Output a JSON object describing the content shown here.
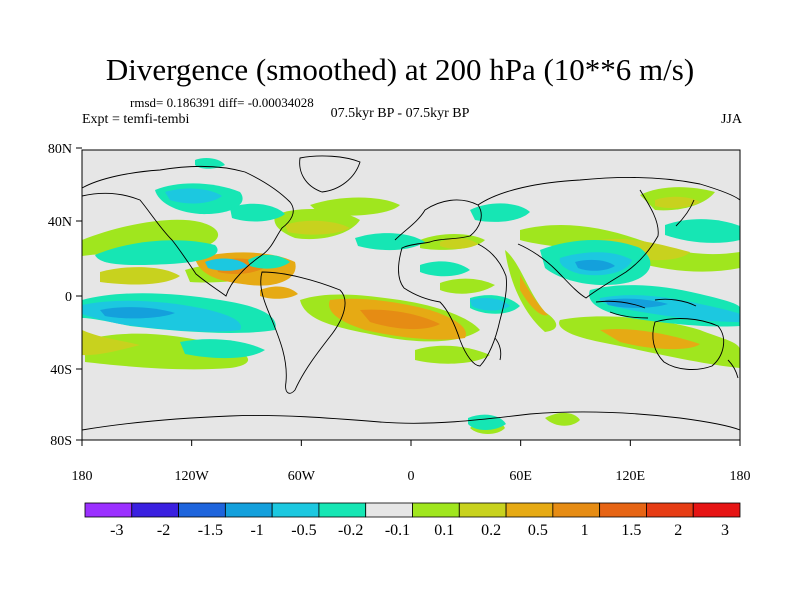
{
  "header": {
    "title": "Divergence (smoothed) at 200 hPa (10**6 m/s)",
    "stats": "rmsd= 0.186391 diff= -0.00034028",
    "experiment": "Expt = temfi-tembi",
    "period": "07.5kyr BP - 07.5kyr BP",
    "season": "JJA"
  },
  "map": {
    "background_color": "#e6e6e6",
    "lat_ticks": [
      "80N",
      "40N",
      "0",
      "40S",
      "80S"
    ],
    "lon_ticks": [
      "180",
      "120W",
      "60W",
      "0",
      "60E",
      "120E",
      "180"
    ]
  },
  "colorbar": {
    "colors": [
      "#9b30ff",
      "#3a20e0",
      "#1e64dc",
      "#14a0dc",
      "#1cc8e0",
      "#16e6b4",
      "#e6e6e6",
      "#a0e61e",
      "#c8d21e",
      "#e6aa14",
      "#e68c14",
      "#e66414",
      "#e63c14",
      "#e61414"
    ],
    "labels": [
      "-3",
      "-2",
      "-1.5",
      "-1",
      "-0.5",
      "-0.2",
      "-0.1",
      "0.1",
      "0.2",
      "0.5",
      "1",
      "1.5",
      "2",
      "3"
    ]
  }
}
